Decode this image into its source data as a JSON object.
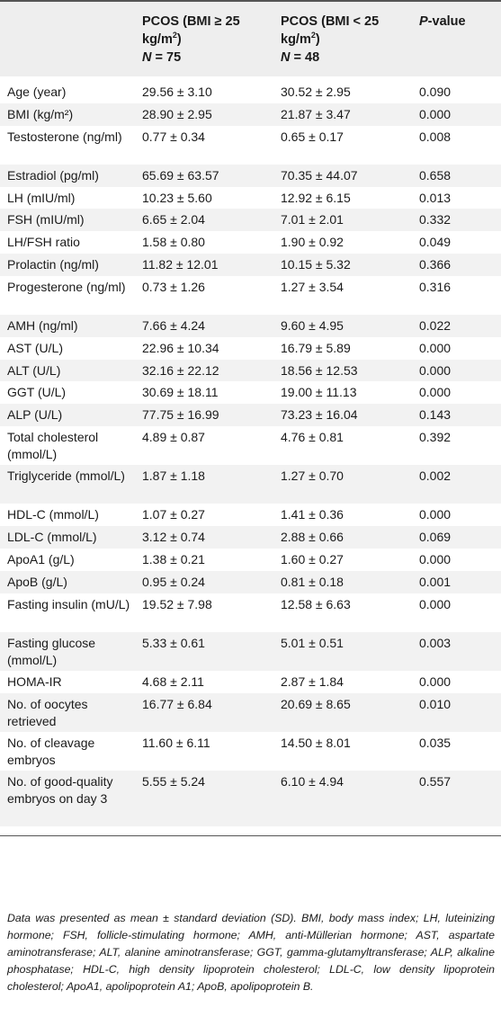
{
  "headers": {
    "col2_line1": "PCOS (BMI ≥ 25",
    "col2_line2a": "kg/m",
    "col2_sup": "2",
    "col2_line2b": ")",
    "col2_n_label": "N",
    "col2_n_value": " = 75",
    "col3_line1": "PCOS (BMI < 25",
    "col3_line2a": "kg/m",
    "col3_sup": "2",
    "col3_line2b": ")",
    "col3_n_label": "N",
    "col3_n_value": " = 48",
    "col4_italic": "P",
    "col4_rest": "-value"
  },
  "rows": [
    {
      "label": "Age (year)",
      "a": "29.56 ± 3.10",
      "b": "30.52 ± 2.95",
      "p": "0.090"
    },
    {
      "label": "BMI (kg/m²)",
      "a": "28.90 ± 2.95",
      "b": "21.87 ± 3.47",
      "p": "0.000"
    },
    {
      "label": "Testosterone (ng/ml)",
      "a": "0.77 ± 0.34",
      "b": "0.65 ± 0.17",
      "p": "0.008"
    },
    {
      "label": "Estradiol (pg/ml)",
      "a": "65.69 ± 63.57",
      "b": "70.35 ± 44.07",
      "p": "0.658"
    },
    {
      "label": "LH (mIU/ml)",
      "a": "10.23 ± 5.60",
      "b": "12.92 ± 6.15",
      "p": "0.013"
    },
    {
      "label": "FSH (mIU/ml)",
      "a": "6.65 ± 2.04",
      "b": "7.01 ± 2.01",
      "p": "0.332"
    },
    {
      "label": "LH/FSH ratio",
      "a": "1.58 ± 0.80",
      "b": "1.90 ± 0.92",
      "p": "0.049"
    },
    {
      "label": "Prolactin (ng/ml)",
      "a": "11.82 ± 12.01",
      "b": "10.15 ± 5.32",
      "p": "0.366"
    },
    {
      "label": "Progesterone (ng/ml)",
      "a": "0.73 ± 1.26",
      "b": "1.27 ± 3.54",
      "p": "0.316"
    },
    {
      "label": "AMH (ng/ml)",
      "a": "7.66 ± 4.24",
      "b": "9.60 ± 4.95",
      "p": "0.022"
    },
    {
      "label": "AST (U/L)",
      "a": "22.96 ± 10.34",
      "b": "16.79 ± 5.89",
      "p": "0.000"
    },
    {
      "label": "ALT (U/L)",
      "a": "32.16 ± 22.12",
      "b": "18.56 ± 12.53",
      "p": "0.000"
    },
    {
      "label": "GGT (U/L)",
      "a": "30.69 ± 18.11",
      "b": "19.00 ± 11.13",
      "p": "0.000"
    },
    {
      "label": "ALP (U/L)",
      "a": "77.75 ± 16.99",
      "b": "73.23 ± 16.04",
      "p": "0.143"
    },
    {
      "label": "Total cholesterol (mmol/L)",
      "a": "4.89 ± 0.87",
      "b": "4.76 ± 0.81",
      "p": "0.392"
    },
    {
      "label": "Triglyceride (mmol/L)",
      "a": "1.87 ± 1.18",
      "b": "1.27 ± 0.70",
      "p": "0.002"
    },
    {
      "label": "HDL-C (mmol/L)",
      "a": "1.07 ± 0.27",
      "b": "1.41 ± 0.36",
      "p": "0.000"
    },
    {
      "label": "LDL-C (mmol/L)",
      "a": "3.12 ± 0.74",
      "b": "2.88 ± 0.66",
      "p": "0.069"
    },
    {
      "label": "ApoA1 (g/L)",
      "a": "1.38 ± 0.21",
      "b": "1.60 ± 0.27",
      "p": "0.000"
    },
    {
      "label": "ApoB (g/L)",
      "a": "0.95 ± 0.24",
      "b": "0.81 ± 0.18",
      "p": "0.001"
    },
    {
      "label": "Fasting insulin (mU/L)",
      "a": "19.52 ± 7.98",
      "b": "12.58 ± 6.63",
      "p": "0.000"
    },
    {
      "label": "Fasting glucose (mmol/L)",
      "a": "5.33 ± 0.61",
      "b": "5.01 ± 0.51",
      "p": "0.003"
    },
    {
      "label": "HOMA-IR",
      "a": "4.68 ± 2.11",
      "b": "2.87 ± 1.84",
      "p": "0.000"
    },
    {
      "label": "No. of oocytes retrieved",
      "a": "16.77 ± 6.84",
      "b": "20.69 ± 8.65",
      "p": "0.010"
    },
    {
      "label": "No. of cleavage embryos",
      "a": "11.60 ± 6.11",
      "b": "14.50 ± 8.01",
      "p": "0.035"
    },
    {
      "label": "No. of good-quality embryos on day 3",
      "a": "5.55 ± 5.24",
      "b": "6.10 ± 4.94",
      "p": "0.557"
    }
  ],
  "footnote": "Data was presented as mean ± standard deviation (SD). BMI, body mass index; LH, luteinizing hormone; FSH, follicle-stimulating hormone; AMH, anti-Müllerian hormone; AST, aspartate aminotransferase; ALT, alanine aminotransferase; GGT, gamma-glutamyltransferase; ALP, alkaline phosphatase; HDL-C, high density lipoprotein cholesterol; LDL-C, low density lipoprotein cholesterol; ApoA1, apolipoprotein A1; ApoB, apolipoprotein B."
}
